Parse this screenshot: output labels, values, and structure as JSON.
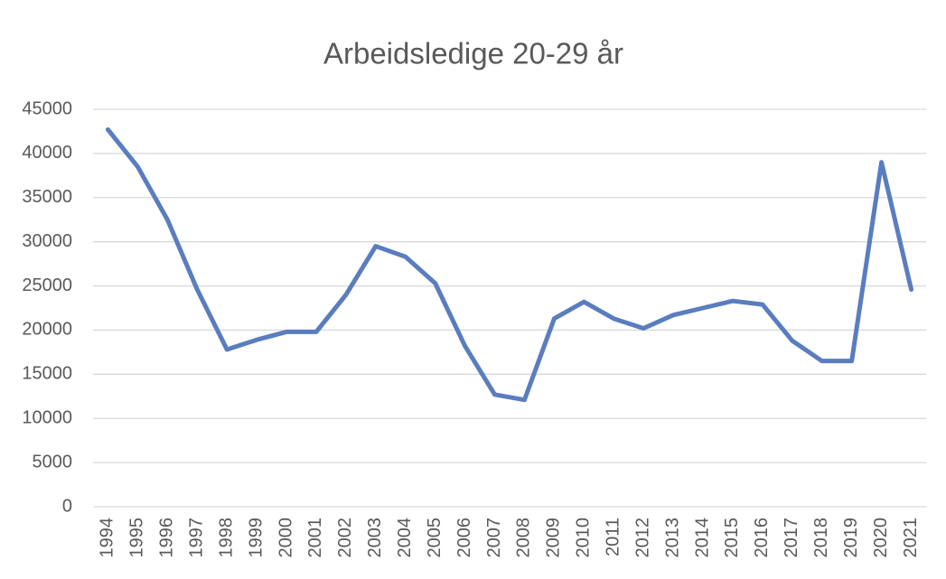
{
  "chart_data": {
    "type": "line",
    "title": "Arbeidsledige 20-29 år",
    "categories": [
      "1994",
      "1995",
      "1996",
      "1997",
      "1998",
      "1999",
      "2000",
      "2001",
      "2002",
      "2003",
      "2004",
      "2005",
      "2006",
      "2007",
      "2008",
      "2009",
      "2010",
      "2011",
      "2012",
      "2013",
      "2014",
      "2015",
      "2016",
      "2017",
      "2018",
      "2019",
      "2020",
      "2021"
    ],
    "values": [
      42700,
      38500,
      32500,
      24600,
      17800,
      18900,
      19800,
      19800,
      24000,
      29500,
      28300,
      25300,
      18200,
      12700,
      12100,
      21300,
      23200,
      21300,
      20200,
      21700,
      22500,
      23300,
      22900,
      18800,
      16500,
      16500,
      39000,
      24600
    ],
    "color": "#5a7dbf",
    "ylim": [
      0,
      45000
    ],
    "yticks": [
      0,
      5000,
      10000,
      15000,
      20000,
      25000,
      30000,
      35000,
      40000,
      45000
    ],
    "grid": true
  }
}
